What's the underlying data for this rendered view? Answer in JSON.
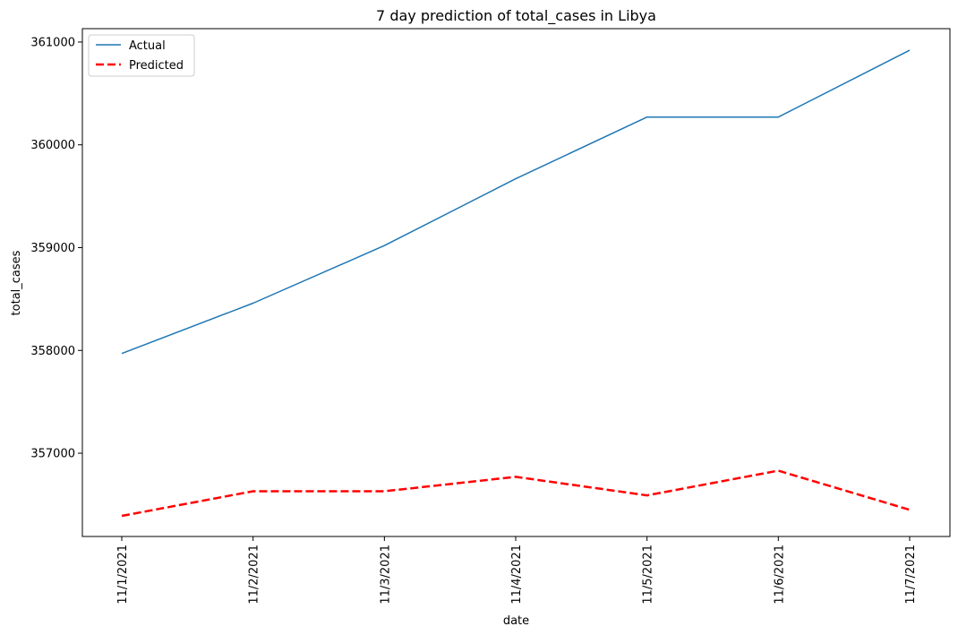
{
  "chart_data": {
    "type": "line",
    "title": "7 day prediction of total_cases in Libya",
    "xlabel": "date",
    "ylabel": "total_cases",
    "categories": [
      "11/1/2021",
      "11/2/2021",
      "11/3/2021",
      "11/4/2021",
      "11/5/2021",
      "11/6/2021",
      "11/7/2021"
    ],
    "ylim": [
      356190,
      361130
    ],
    "yticks": [
      357000,
      358000,
      359000,
      360000,
      361000
    ],
    "legend_position": "top-left",
    "grid": false,
    "series": [
      {
        "name": "Actual",
        "color": "#1f77b4",
        "style": "solid",
        "values": [
          357970,
          358460,
          359020,
          359670,
          360270,
          360270,
          360920
        ]
      },
      {
        "name": "Predicted",
        "color": "#ff0000",
        "style": "dashed",
        "values": [
          356390,
          356630,
          356630,
          356770,
          356590,
          356830,
          356450
        ]
      }
    ]
  }
}
